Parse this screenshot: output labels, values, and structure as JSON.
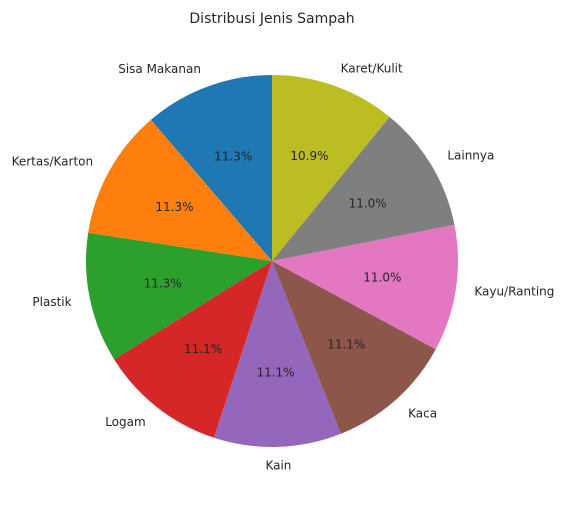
{
  "chart_data": {
    "type": "pie",
    "title": "Distribusi Jenis Sampah",
    "start_angle_deg": 90,
    "direction": "counterclockwise",
    "slices": [
      {
        "label": "Sisa Makanan",
        "value": 11.3,
        "pct_label": "11.3%",
        "color": "#1f77b4"
      },
      {
        "label": "Kertas/Karton",
        "value": 11.3,
        "pct_label": "11.3%",
        "color": "#ff7f0e"
      },
      {
        "label": "Plastik",
        "value": 11.3,
        "pct_label": "11.3%",
        "color": "#2ca02c"
      },
      {
        "label": "Logam",
        "value": 11.1,
        "pct_label": "11.1%",
        "color": "#d62728"
      },
      {
        "label": "Kain",
        "value": 11.1,
        "pct_label": "11.1%",
        "color": "#9467bd"
      },
      {
        "label": "Kaca",
        "value": 11.1,
        "pct_label": "11.1%",
        "color": "#8c564b"
      },
      {
        "label": "Kayu/Ranting",
        "value": 11.0,
        "pct_label": "11.0%",
        "color": "#e377c2"
      },
      {
        "label": "Lainnya",
        "value": 11.0,
        "pct_label": "11.0%",
        "color": "#7f7f7f"
      },
      {
        "label": "Karet/Kulit",
        "value": 10.9,
        "pct_label": "10.9%",
        "color": "#bcbd22"
      }
    ]
  }
}
